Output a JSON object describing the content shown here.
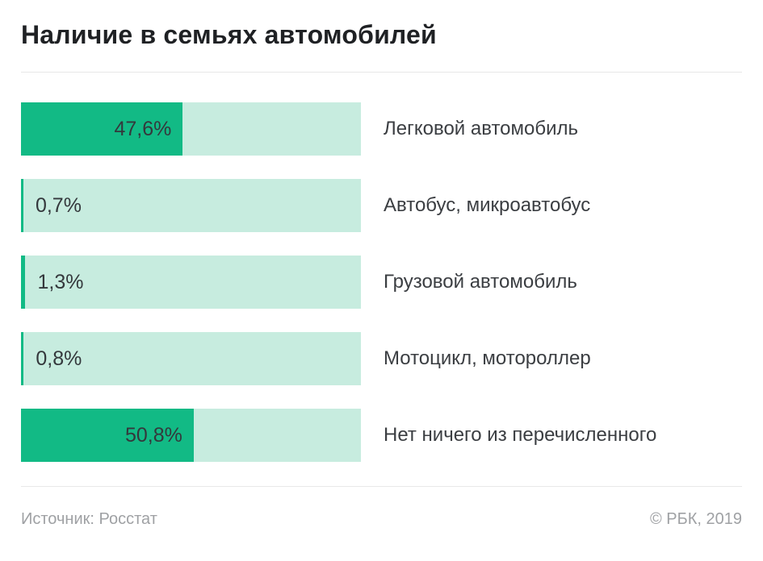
{
  "title": "Наличие в семьях автомобилей",
  "footer": {
    "source": "Источник: Росстат",
    "copyright": "© РБК, 2019"
  },
  "colors": {
    "fill": "#12ba85",
    "track": "#c7ecdf",
    "title_text": "#1f2124",
    "value_text": "#34383c",
    "label_text": "#3b3e42",
    "footer_text": "#9fa1a4",
    "divider": "#e8e8e8"
  },
  "chart_data": {
    "type": "bar",
    "orientation": "horizontal",
    "title": "Наличие в семьях автомобилей",
    "unit": "%",
    "xlim": [
      0,
      100
    ],
    "grid": false,
    "legend": false,
    "categories": [
      "Легковой автомобиль",
      "Автобус, микроавтобус",
      "Грузовой автомобиль",
      "Мотоцикл, мотороллер",
      "Нет ничего из перечисленного"
    ],
    "values": [
      47.6,
      0.7,
      1.3,
      0.8,
      50.8
    ],
    "value_labels": [
      "47,6%",
      "0,7%",
      "1,3%",
      "0,8%",
      "50,8%"
    ],
    "inside_label_threshold": 20
  }
}
